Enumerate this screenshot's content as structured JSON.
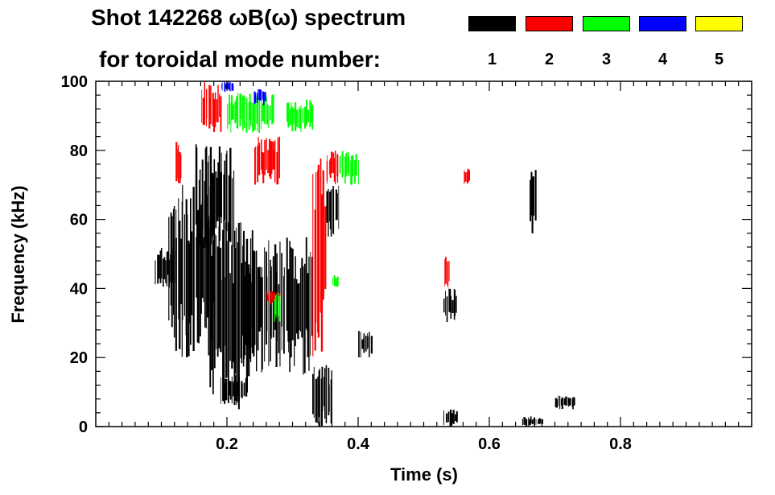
{
  "header": {
    "title_line1": "Shot 142268 ωB(ω) spectrum",
    "title_line2": "for toroidal mode number:"
  },
  "legend": [
    {
      "label": "1",
      "color": "#000000"
    },
    {
      "label": "2",
      "color": "#ff0000"
    },
    {
      "label": "3",
      "color": "#00ff00"
    },
    {
      "label": "4",
      "color": "#0000ff"
    },
    {
      "label": "5",
      "color": "#ffff00"
    }
  ],
  "chart_data": {
    "type": "heatmap",
    "title": "Shot 142268 ωB(ω) spectrum for toroidal mode number:",
    "xlabel": "Time (s)",
    "ylabel": "Frequency (kHz)",
    "xlim": [
      0.0,
      1.0
    ],
    "ylim": [
      0,
      100
    ],
    "x_ticks": [
      "0.2",
      "0.4",
      "0.6",
      "0.8"
    ],
    "x_tick_values": [
      0.2,
      0.4,
      0.6,
      0.8
    ],
    "y_ticks": [
      "0",
      "20",
      "40",
      "60",
      "80",
      "100"
    ],
    "y_tick_values": [
      0,
      20,
      40,
      60,
      80,
      100
    ],
    "series": [
      {
        "name": "1",
        "color": "#000000",
        "features": [
          {
            "t": [
              0.09,
              0.12
            ],
            "f": [
              40,
              52
            ]
          },
          {
            "t": [
              0.11,
              0.18
            ],
            "f": [
              20,
              70
            ]
          },
          {
            "t": [
              0.15,
              0.21
            ],
            "f": [
              50,
              82
            ]
          },
          {
            "t": [
              0.17,
              0.24
            ],
            "f": [
              5,
              60
            ]
          },
          {
            "t": [
              0.19,
              0.23
            ],
            "f": [
              6,
              15
            ]
          },
          {
            "t": [
              0.22,
              0.33
            ],
            "f": [
              15,
              55
            ]
          },
          {
            "t": [
              0.33,
              0.36
            ],
            "f": [
              0,
              18
            ]
          },
          {
            "t": [
              0.35,
              0.37
            ],
            "f": [
              55,
              72
            ]
          },
          {
            "t": [
              0.4,
              0.42
            ],
            "f": [
              20,
              28
            ]
          },
          {
            "t": [
              0.53,
              0.55
            ],
            "f": [
              30,
              40
            ]
          },
          {
            "t": [
              0.53,
              0.55
            ],
            "f": [
              0,
              5
            ]
          },
          {
            "t": [
              0.66,
              0.67
            ],
            "f": [
              55,
              75
            ]
          },
          {
            "t": [
              0.65,
              0.68
            ],
            "f": [
              0,
              3
            ]
          },
          {
            "t": [
              0.7,
              0.73
            ],
            "f": [
              5,
              9
            ]
          }
        ]
      },
      {
        "name": "2",
        "color": "#ff0000",
        "features": [
          {
            "t": [
              0.12,
              0.13
            ],
            "f": [
              70,
              83
            ]
          },
          {
            "t": [
              0.16,
              0.19
            ],
            "f": [
              85,
              100
            ]
          },
          {
            "t": [
              0.24,
              0.28
            ],
            "f": [
              70,
              84
            ]
          },
          {
            "t": [
              0.26,
              0.28
            ],
            "f": [
              35,
              40
            ]
          },
          {
            "t": [
              0.33,
              0.35
            ],
            "f": [
              20,
              80
            ]
          },
          {
            "t": [
              0.35,
              0.37
            ],
            "f": [
              70,
              80
            ]
          },
          {
            "t": [
              0.53,
              0.54
            ],
            "f": [
              40,
              50
            ]
          },
          {
            "t": [
              0.56,
              0.57
            ],
            "f": [
              70,
              75
            ]
          }
        ]
      },
      {
        "name": "3",
        "color": "#00ff00",
        "features": [
          {
            "t": [
              0.2,
              0.27
            ],
            "f": [
              85,
              97
            ]
          },
          {
            "t": [
              0.29,
              0.33
            ],
            "f": [
              85,
              95
            ]
          },
          {
            "t": [
              0.37,
              0.4
            ],
            "f": [
              70,
              80
            ]
          },
          {
            "t": [
              0.27,
              0.28
            ],
            "f": [
              30,
              40
            ]
          },
          {
            "t": [
              0.36,
              0.37
            ],
            "f": [
              40,
              44
            ]
          }
        ]
      },
      {
        "name": "4",
        "color": "#0000ff",
        "features": [
          {
            "t": [
              0.19,
              0.21
            ],
            "f": [
              97,
              100
            ]
          },
          {
            "t": [
              0.24,
              0.26
            ],
            "f": [
              93,
              98
            ]
          }
        ]
      },
      {
        "name": "5",
        "color": "#ffff00",
        "features": []
      }
    ]
  }
}
